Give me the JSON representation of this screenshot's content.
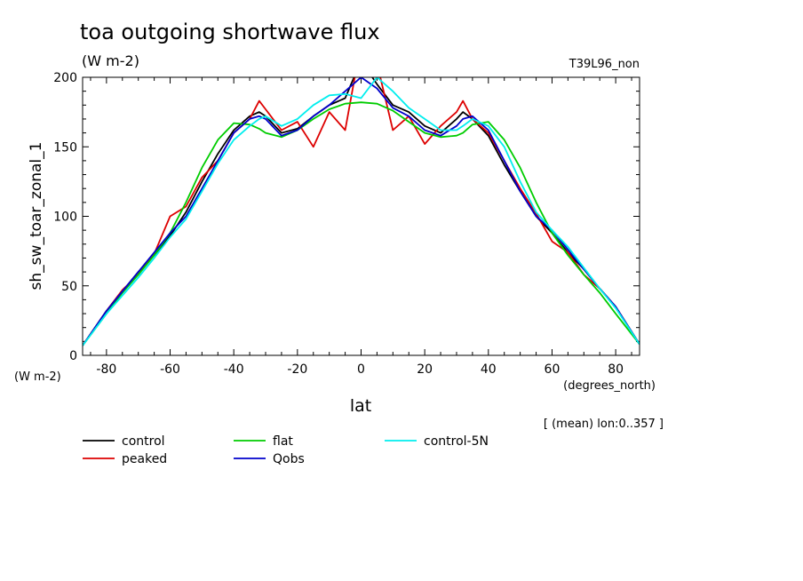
{
  "chart_data": {
    "type": "line",
    "title": "toa outgoing shortwave flux",
    "title_units": "(W m-2)",
    "run_label": "T39L96_non",
    "xlabel": "lat",
    "x_units": "(degrees_north)",
    "ylabel": "sh_sw_toar_zonal_1",
    "y_units": "(W m-2)",
    "footnote": "[ (mean) lon:0..357 ]",
    "xlim": [
      -87.5,
      87.5
    ],
    "ylim": [
      0,
      200
    ],
    "x_ticks": [
      -80,
      -60,
      -40,
      -20,
      0,
      20,
      40,
      60,
      80
    ],
    "x_tick_labels": [
      "-80",
      "-60",
      "-40",
      "-20",
      "0",
      "20",
      "40",
      "60",
      "80"
    ],
    "y_ticks": [
      0,
      50,
      100,
      150,
      200
    ],
    "y_tick_labels": [
      "0",
      "50",
      "100",
      "150",
      "200"
    ],
    "x": [
      -87.5,
      -80,
      -75,
      -70,
      -65,
      -60,
      -55,
      -50,
      -45,
      -40,
      -35,
      -32,
      -30,
      -25,
      -20,
      -15,
      -10,
      -5,
      0,
      5,
      10,
      15,
      20,
      25,
      30,
      32,
      35,
      40,
      45,
      50,
      55,
      60,
      65,
      70,
      75,
      80,
      87.5
    ],
    "series": [
      {
        "name": "control",
        "color": "#000000",
        "values": [
          7,
          32,
          46,
          60,
          72,
          86,
          103,
          125,
          145,
          162,
          172,
          175,
          172,
          160,
          163,
          172,
          180,
          185,
          212,
          195,
          180,
          175,
          165,
          160,
          170,
          175,
          170,
          158,
          137,
          118,
          100,
          88,
          74,
          62,
          48,
          35,
          8
        ]
      },
      {
        "name": "peaked",
        "color": "#dd0000",
        "values": [
          7,
          32,
          47,
          58,
          73,
          100,
          107,
          128,
          140,
          160,
          170,
          183,
          177,
          162,
          168,
          150,
          175,
          162,
          225,
          210,
          162,
          172,
          152,
          165,
          175,
          183,
          170,
          160,
          140,
          120,
          102,
          82,
          74,
          58,
          48,
          35,
          8
        ]
      },
      {
        "name": "flat",
        "color": "#00cc00",
        "values": [
          7,
          30,
          45,
          58,
          72,
          88,
          110,
          135,
          155,
          167,
          166,
          163,
          160,
          157,
          162,
          170,
          177,
          181,
          182,
          181,
          176,
          168,
          160,
          157,
          158,
          160,
          166,
          168,
          155,
          135,
          110,
          88,
          72,
          58,
          45,
          30,
          8
        ]
      },
      {
        "name": "Qobs",
        "color": "#0000cc",
        "values": [
          7,
          32,
          46,
          60,
          74,
          88,
          100,
          120,
          140,
          160,
          170,
          172,
          170,
          158,
          162,
          172,
          180,
          190,
          200,
          192,
          178,
          172,
          162,
          158,
          165,
          170,
          172,
          162,
          140,
          118,
          100,
          90,
          76,
          62,
          48,
          35,
          8
        ]
      },
      {
        "name": "control-5N",
        "color": "#00eeee",
        "values": [
          7,
          30,
          43,
          56,
          70,
          85,
          98,
          118,
          138,
          155,
          165,
          170,
          172,
          165,
          170,
          180,
          187,
          188,
          185,
          200,
          190,
          178,
          170,
          162,
          162,
          165,
          170,
          165,
          150,
          125,
          103,
          90,
          78,
          63,
          48,
          34,
          8
        ]
      }
    ]
  }
}
